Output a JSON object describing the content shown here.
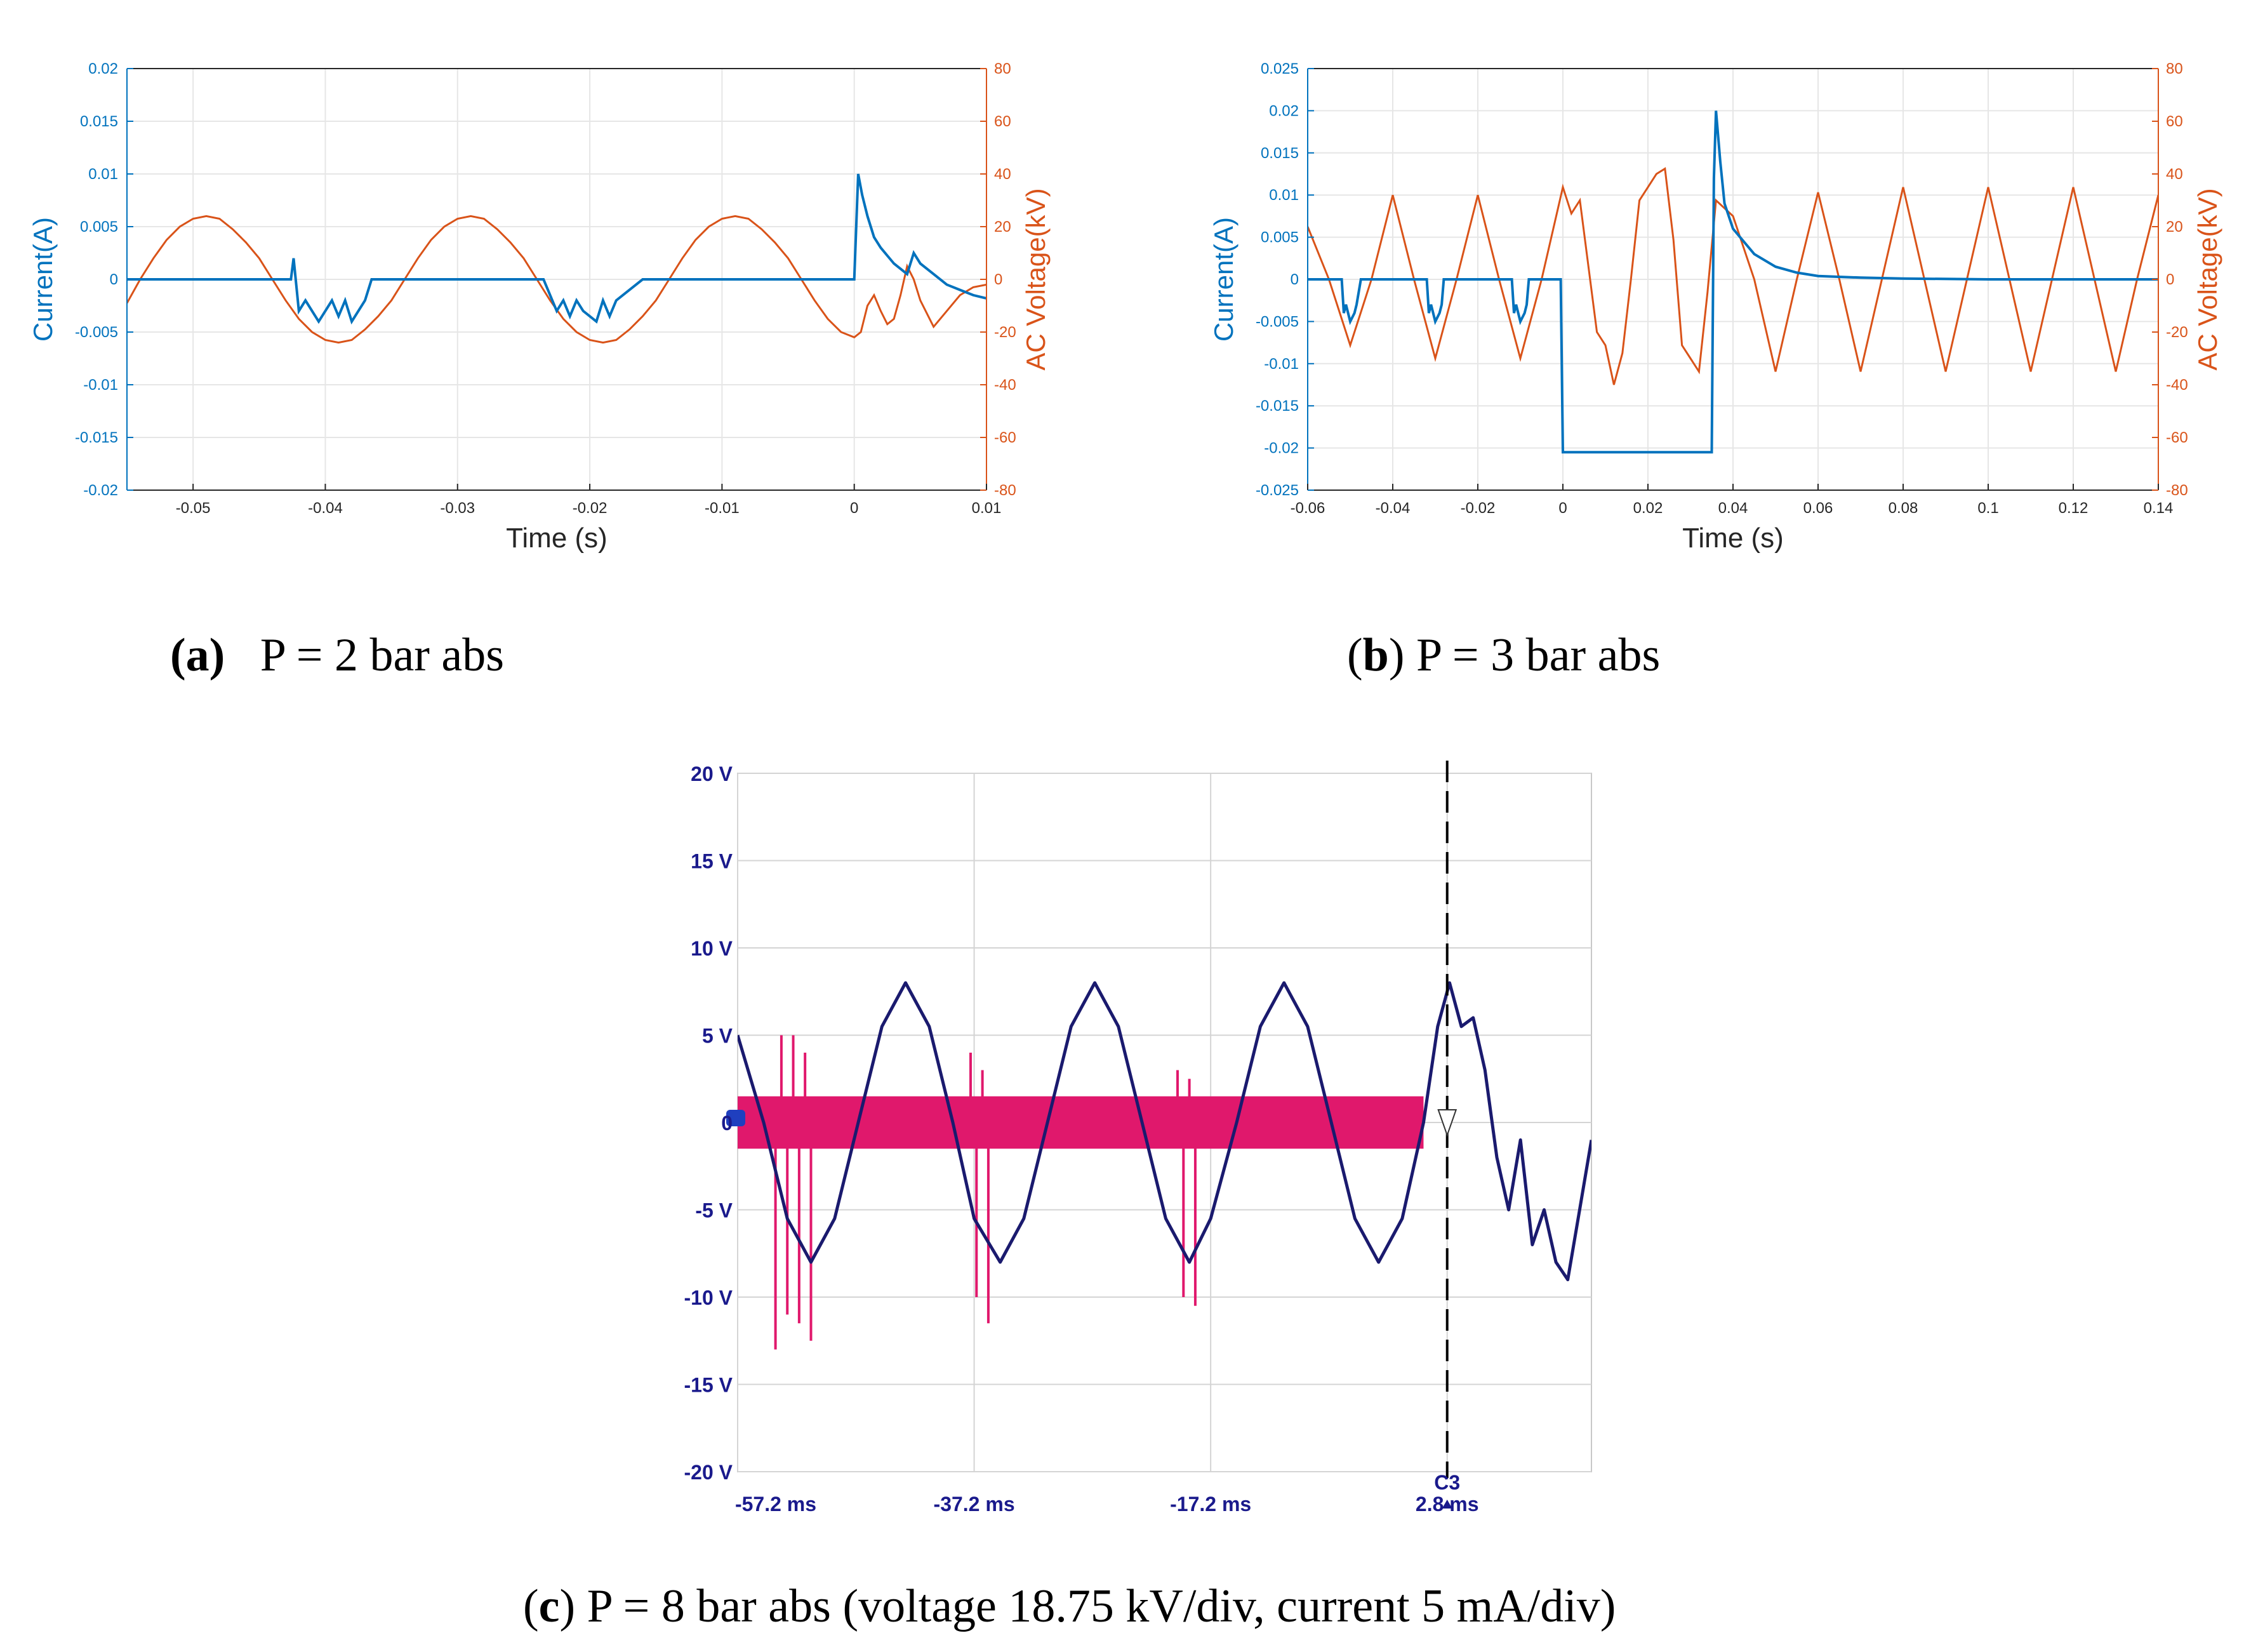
{
  "chart_data": [
    {
      "id": "a",
      "type": "line",
      "xlabel": "Time (s)",
      "ylabel_left": "Current(A)",
      "ylabel_right": "AC Voltage(kV)",
      "xlim": [
        -0.055,
        0.01
      ],
      "ylim_left": [
        -0.02,
        0.02
      ],
      "ylim_right": [
        -80,
        80
      ],
      "x_ticks": [
        "-0.05",
        "-0.04",
        "-0.03",
        "-0.02",
        "-0.01",
        "0",
        "0.01"
      ],
      "x_tick_values": [
        -0.05,
        -0.04,
        -0.03,
        -0.02,
        -0.01,
        0,
        0.01
      ],
      "y_left_ticks": [
        "0.02",
        "0.015",
        "0.01",
        "0.005",
        "0",
        "-0.005",
        "-0.01",
        "-0.015",
        "-0.02"
      ],
      "y_left_tick_values": [
        0.02,
        0.015,
        0.01,
        0.005,
        0,
        -0.005,
        -0.01,
        -0.015,
        -0.02
      ],
      "y_right_ticks": [
        "80",
        "60",
        "40",
        "20",
        "0",
        "-20",
        "-40",
        "-60",
        "-80"
      ],
      "y_right_tick_values": [
        80,
        60,
        40,
        20,
        0,
        -20,
        -40,
        -60,
        -80
      ],
      "grid": true,
      "series": [
        {
          "axis": "right",
          "color": "#d95319",
          "x": [
            -0.055,
            -0.054,
            -0.053,
            -0.052,
            -0.051,
            -0.05,
            -0.049,
            -0.048,
            -0.047,
            -0.046,
            -0.045,
            -0.044,
            -0.043,
            -0.042,
            -0.041,
            -0.04,
            -0.039,
            -0.038,
            -0.037,
            -0.036,
            -0.035,
            -0.034,
            -0.033,
            -0.032,
            -0.031,
            -0.03,
            -0.029,
            -0.028,
            -0.027,
            -0.026,
            -0.025,
            -0.024,
            -0.023,
            -0.022,
            -0.021,
            -0.02,
            -0.019,
            -0.018,
            -0.017,
            -0.016,
            -0.015,
            -0.014,
            -0.013,
            -0.012,
            -0.011,
            -0.01,
            -0.009,
            -0.008,
            -0.007,
            -0.006,
            -0.005,
            -0.004,
            -0.003,
            -0.002,
            -0.001,
            0.0,
            0.0005,
            0.001,
            0.0015,
            0.002,
            0.0025,
            0.003,
            0.0035,
            0.004,
            0.0045,
            0.005,
            0.006,
            0.007,
            0.008,
            0.009,
            0.01
          ],
          "y": [
            -9,
            0,
            8,
            15,
            20,
            23,
            24,
            23,
            19,
            14,
            8,
            0,
            -8,
            -15,
            -20,
            -23,
            -24,
            -23,
            -19,
            -14,
            -8,
            0,
            8,
            15,
            20,
            23,
            24,
            23,
            19,
            14,
            8,
            0,
            -8,
            -15,
            -20,
            -23,
            -24,
            -23,
            -19,
            -14,
            -8,
            0,
            8,
            15,
            20,
            23,
            24,
            23,
            19,
            14,
            8,
            0,
            -8,
            -15,
            -20,
            -22,
            -20,
            -10,
            -6,
            -12,
            -17,
            -15,
            -6,
            5,
            0,
            -8,
            -18,
            -12,
            -6,
            -3,
            -2
          ]
        },
        {
          "axis": "left",
          "color": "#0072bd",
          "x": [
            -0.055,
            -0.0426,
            -0.0424,
            -0.042,
            -0.0415,
            -0.0405,
            -0.04,
            -0.0395,
            -0.039,
            -0.0385,
            -0.038,
            -0.037,
            -0.0365,
            -0.03,
            -0.0255,
            -0.0235,
            -0.0225,
            -0.022,
            -0.0215,
            -0.021,
            -0.0205,
            -0.0195,
            -0.019,
            -0.0185,
            -0.018,
            -0.017,
            -0.016,
            -0.012,
            -0.009,
            -0.005,
            -0.002,
            0.0,
            0.0003,
            0.0006,
            0.001,
            0.0015,
            0.002,
            0.003,
            0.004,
            0.0045,
            0.005,
            0.006,
            0.007,
            0.008,
            0.009,
            0.01
          ],
          "y": [
            0,
            0,
            0.002,
            -0.003,
            -0.002,
            -0.004,
            -0.003,
            -0.002,
            -0.0035,
            -0.002,
            -0.004,
            -0.002,
            0,
            0,
            0,
            0,
            -0.003,
            -0.002,
            -0.0035,
            -0.002,
            -0.003,
            -0.004,
            -0.002,
            -0.0035,
            -0.002,
            -0.001,
            0,
            0,
            0,
            0,
            0,
            0,
            0.01,
            0.008,
            0.006,
            0.004,
            0.003,
            0.0015,
            0.0005,
            0.0025,
            0.0015,
            0.0005,
            -0.0005,
            -0.001,
            -0.0015,
            -0.0018
          ]
        }
      ]
    },
    {
      "id": "b",
      "type": "line",
      "xlabel": "Time (s)",
      "ylabel_left": "Current(A)",
      "ylabel_right": "AC Voltage(kV)",
      "xlim": [
        -0.06,
        0.14
      ],
      "ylim_left": [
        -0.025,
        0.025
      ],
      "ylim_right": [
        -80,
        80
      ],
      "x_ticks": [
        "-0.06",
        "-0.04",
        "-0.02",
        "0",
        "0.02",
        "0.04",
        "0.06",
        "0.08",
        "0.1",
        "0.12",
        "0.14"
      ],
      "x_tick_values": [
        -0.06,
        -0.04,
        -0.02,
        0,
        0.02,
        0.04,
        0.06,
        0.08,
        0.1,
        0.12,
        0.14
      ],
      "y_left_ticks": [
        "0.025",
        "0.02",
        "0.015",
        "0.01",
        "0.005",
        "0",
        "-0.005",
        "-0.01",
        "-0.015",
        "-0.02",
        "-0.025"
      ],
      "y_left_tick_values": [
        0.025,
        0.02,
        0.015,
        0.01,
        0.005,
        0,
        -0.005,
        -0.01,
        -0.015,
        -0.02,
        -0.025
      ],
      "y_right_ticks": [
        "80",
        "60",
        "40",
        "20",
        "0",
        "-20",
        "-40",
        "-60",
        "-80"
      ],
      "y_right_tick_values": [
        80,
        60,
        40,
        20,
        0,
        -20,
        -40,
        -60,
        -80
      ],
      "grid": true,
      "series": [
        {
          "axis": "right",
          "color": "#d95319",
          "x": [
            -0.06,
            -0.055,
            -0.05,
            -0.045,
            -0.04,
            -0.035,
            -0.03,
            -0.025,
            -0.02,
            -0.015,
            -0.01,
            -0.005,
            0.0,
            0.002,
            0.004,
            0.006,
            0.008,
            0.01,
            0.012,
            0.014,
            0.016,
            0.018,
            0.02,
            0.022,
            0.024,
            0.026,
            0.028,
            0.03,
            0.032,
            0.034,
            0.036,
            0.04,
            0.045,
            0.05,
            0.055,
            0.06,
            0.065,
            0.07,
            0.075,
            0.08,
            0.085,
            0.09,
            0.095,
            0.1,
            0.105,
            0.11,
            0.115,
            0.12,
            0.125,
            0.13,
            0.135,
            0.14
          ],
          "y": [
            20,
            0,
            -25,
            0,
            32,
            0,
            -30,
            0,
            32,
            0,
            -30,
            0,
            35,
            25,
            30,
            5,
            -20,
            -25,
            -40,
            -28,
            0,
            30,
            35,
            40,
            42,
            15,
            -25,
            -30,
            -35,
            -5,
            30,
            24,
            0,
            -35,
            0,
            33,
            0,
            -35,
            0,
            35,
            0,
            -35,
            0,
            35,
            0,
            -35,
            0,
            35,
            0,
            -35,
            0,
            32
          ]
        },
        {
          "axis": "left",
          "color": "#0072bd",
          "x": [
            -0.06,
            -0.052,
            -0.0515,
            -0.051,
            -0.05,
            -0.049,
            -0.0485,
            -0.0475,
            -0.032,
            -0.0315,
            -0.031,
            -0.03,
            -0.029,
            -0.0285,
            -0.028,
            -0.012,
            -0.0115,
            -0.011,
            -0.01,
            -0.009,
            -0.0085,
            -0.008,
            -0.0005,
            0.0,
            0.0005,
            0.035,
            0.0355,
            0.036,
            0.037,
            0.038,
            0.04,
            0.045,
            0.05,
            0.055,
            0.06,
            0.07,
            0.08,
            0.1,
            0.14
          ],
          "y": [
            0,
            0,
            -0.004,
            -0.003,
            -0.005,
            -0.004,
            -0.003,
            0,
            0,
            -0.004,
            -0.003,
            -0.005,
            -0.004,
            -0.003,
            0,
            0,
            -0.004,
            -0.003,
            -0.005,
            -0.004,
            -0.003,
            0,
            0,
            -0.0205,
            -0.0205,
            -0.0205,
            0.012,
            0.02,
            0.014,
            0.009,
            0.006,
            0.003,
            0.0015,
            0.0008,
            0.0004,
            0.0002,
            0.0001,
            0,
            0
          ]
        }
      ]
    },
    {
      "id": "c",
      "type": "line",
      "x_ticks": [
        "-57.2 ms",
        "-37.2 ms",
        "-17.2 ms",
        "2.8 ms"
      ],
      "x_tick_values": [
        -57.2,
        -37.2,
        -17.2,
        2.8
      ],
      "y_ticks": [
        "20 V",
        "15 V",
        "10 V",
        "5 V",
        "0",
        "-5 V",
        "-10 V",
        "-15 V",
        "-20 V"
      ],
      "y_tick_values": [
        20,
        15,
        10,
        5,
        0,
        -5,
        -10,
        -15,
        -20
      ],
      "xlim": [
        -57.2,
        15.0
      ],
      "ylim": [
        -20,
        20
      ],
      "grid": true,
      "cursor_label": "C3",
      "cursor_x": 2.8,
      "series": [
        {
          "color": "#1a1a6e",
          "x": [
            -57.2,
            -55.0,
            -53.0,
            -51.0,
            -49.0,
            -47.0,
            -45.0,
            -43.0,
            -41.0,
            -39.0,
            -37.2,
            -35.0,
            -33.0,
            -31.0,
            -29.0,
            -27.0,
            -25.0,
            -23.0,
            -21.0,
            -19.0,
            -17.2,
            -15.0,
            -13.0,
            -11.0,
            -9.0,
            -7.0,
            -5.0,
            -3.0,
            -1.0,
            0.8,
            2.0,
            3.0,
            4.0,
            5.0,
            6.0,
            7.0,
            8.0,
            9.0,
            10.0,
            11.0,
            12.0,
            13.0,
            14.0,
            15.0
          ],
          "y": [
            5,
            0,
            -5.5,
            -8,
            -5.5,
            0,
            5.5,
            8,
            5.5,
            0,
            -5.5,
            -8,
            -5.5,
            0,
            5.5,
            8,
            5.5,
            0,
            -5.5,
            -8,
            -5.5,
            0,
            5.5,
            8,
            5.5,
            0,
            -5.5,
            -8,
            -5.5,
            0,
            5.5,
            8,
            5.5,
            6,
            3,
            -2,
            -5,
            -1,
            -7,
            -5,
            -8,
            -9,
            -5,
            -1
          ]
        },
        {
          "color": "#e0186c",
          "band_from": -57.2,
          "band_to": 0.8,
          "band_half_height": 1.5,
          "spikes": [
            {
              "x": -54.0,
              "y": -13
            },
            {
              "x": -53.5,
              "y": 5
            },
            {
              "x": -53.0,
              "y": -11
            },
            {
              "x": -52.5,
              "y": 5
            },
            {
              "x": -52.0,
              "y": -11.5
            },
            {
              "x": -51.5,
              "y": 4
            },
            {
              "x": -51.0,
              "y": -12.5
            },
            {
              "x": -37.5,
              "y": 4
            },
            {
              "x": -37.0,
              "y": -10
            },
            {
              "x": -36.5,
              "y": 3
            },
            {
              "x": -36.0,
              "y": -11.5
            },
            {
              "x": -20.0,
              "y": 3
            },
            {
              "x": -19.5,
              "y": -10
            },
            {
              "x": -19.0,
              "y": 2.5
            },
            {
              "x": -18.5,
              "y": -10.5
            }
          ]
        }
      ]
    }
  ],
  "captions": {
    "a_label": "(a)",
    "a_text": "P = 2 bar abs",
    "b_label": "b",
    "b_text": "P = 3 bar abs",
    "c_label": "c",
    "c_text": "P = 8 bar abs (voltage 18.75 kV/div, current 5 mA/div)"
  }
}
